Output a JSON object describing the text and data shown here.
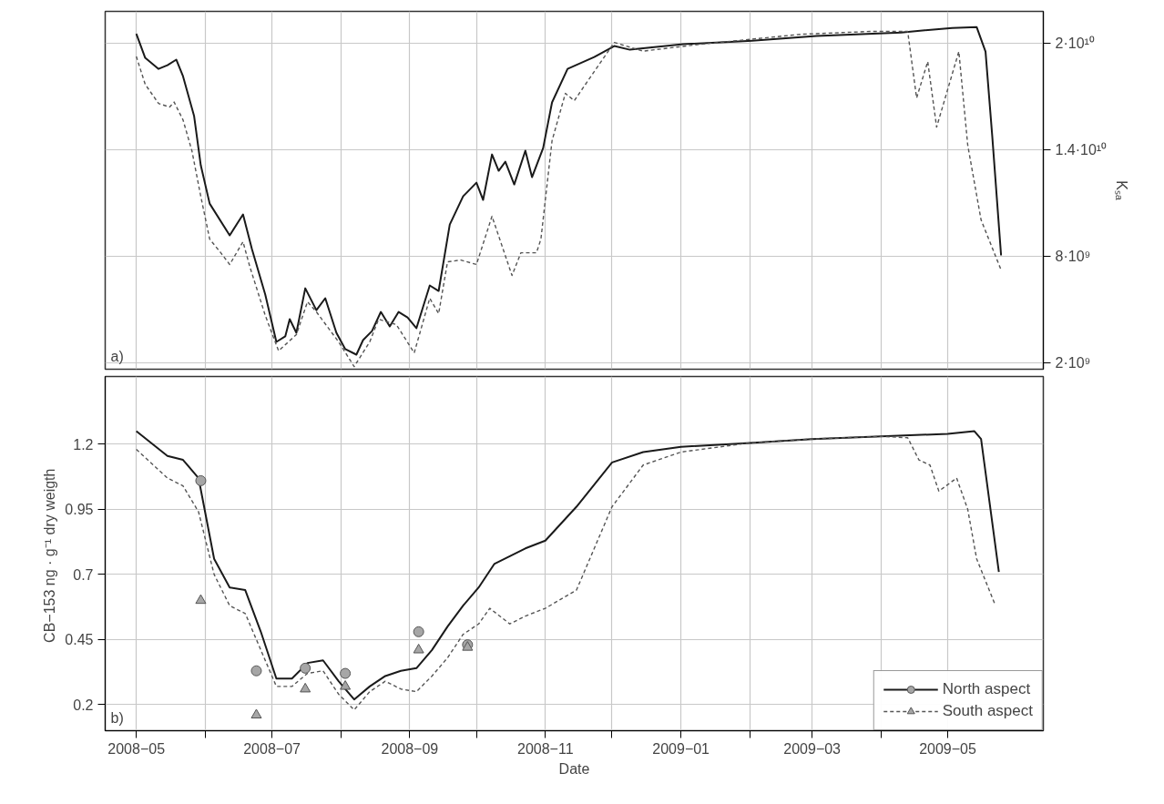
{
  "chart_data": [
    {
      "type": "line",
      "annotations": [
        "a)"
      ],
      "grid": true,
      "tick_labels": "y",
      "y2label": "Kₛₐ",
      "xlim": [
        "2008-04-17",
        "2009-06-13"
      ],
      "xticks": [
        {
          "value": "2008-05",
          "label": null
        },
        {
          "value": "2008-06",
          "label": null
        },
        {
          "value": "2008-07",
          "label": null
        },
        {
          "value": "2008-08",
          "label": null
        },
        {
          "value": "2008-09",
          "label": null
        },
        {
          "value": "2008-10",
          "label": null
        },
        {
          "value": "2008-11",
          "label": null
        },
        {
          "value": "2008-12",
          "label": null
        },
        {
          "value": "2009-01",
          "label": null
        },
        {
          "value": "2009-02",
          "label": null
        },
        {
          "value": "2009-03",
          "label": null
        },
        {
          "value": "2009-04",
          "label": null
        },
        {
          "value": "2009-05",
          "label": null
        }
      ],
      "y2lim": [
        1640000000,
        21800000000
      ],
      "y2ticks": [
        {
          "value": 2000000000,
          "label": "2·10⁹"
        },
        {
          "value": 8000000000,
          "label": "8·10⁹"
        },
        {
          "value": 14000000000,
          "label": "1.4·10¹⁰"
        },
        {
          "value": 20000000000,
          "label": "2·10¹⁰"
        }
      ],
      "series": [
        {
          "axis": "y2",
          "color": "#1a1a1a",
          "line_style": "solid",
          "x": [
            "2008-05-01",
            "2008-05-05",
            "2008-05-11",
            "2008-05-15",
            "2008-05-19",
            "2008-05-22",
            "2008-05-27",
            "2008-05-30",
            "2008-06-03",
            "2008-06-12",
            "2008-06-18",
            "2008-06-22",
            "2008-06-28",
            "2008-07-03",
            "2008-07-07",
            "2008-07-09",
            "2008-07-12",
            "2008-07-16",
            "2008-07-21",
            "2008-07-25",
            "2008-07-30",
            "2008-08-03",
            "2008-08-08",
            "2008-08-11",
            "2008-08-15",
            "2008-08-19",
            "2008-08-23",
            "2008-08-27",
            "2008-08-31",
            "2008-09-04",
            "2008-09-10",
            "2008-09-14",
            "2008-09-19",
            "2008-09-25",
            "2008-10-01",
            "2008-10-04",
            "2008-10-08",
            "2008-10-11",
            "2008-10-14",
            "2008-10-18",
            "2008-10-23",
            "2008-10-26",
            "2008-10-31",
            "2008-11-04",
            "2008-11-11",
            "2008-11-23",
            "2008-12-02",
            "2008-12-09",
            "2009-01-02",
            "2009-02-02",
            "2009-03-03",
            "2009-04-10",
            "2009-05-03",
            "2009-05-14",
            "2009-05-18",
            "2009-05-21",
            "2009-05-25"
          ],
          "values": [
            20540000000,
            19180000000,
            18560000000,
            18770000000,
            19080000000,
            18150000000,
            15900000000,
            13130000000,
            10970000000,
            9180000000,
            10360000000,
            8410000000,
            5850000000,
            3180000000,
            3490000000,
            4460000000,
            3690000000,
            6200000000,
            4970000000,
            5640000000,
            3690000000,
            2770000000,
            2460000000,
            3280000000,
            3790000000,
            4870000000,
            4050000000,
            4870000000,
            4560000000,
            3950000000,
            6360000000,
            6050000000,
            9790000000,
            11380000000,
            12150000000,
            11180000000,
            13740000000,
            12820000000,
            13330000000,
            12050000000,
            13950000000,
            12460000000,
            14100000000,
            16670000000,
            18560000000,
            19230000000,
            19850000000,
            19640000000,
            19950000000,
            20150000000,
            20410000000,
            20610000000,
            20870000000,
            20920000000,
            19540000000,
            14820000000,
            8050000000
          ]
        },
        {
          "axis": "y2",
          "color": "#555555",
          "line_style": "dashed",
          "x": [
            "2008-05-01",
            "2008-05-05",
            "2008-05-11",
            "2008-05-16",
            "2008-05-18",
            "2008-05-22",
            "2008-05-26",
            "2008-05-30",
            "2008-06-03",
            "2008-06-08",
            "2008-06-12",
            "2008-06-18",
            "2008-06-21",
            "2008-06-28",
            "2008-07-04",
            "2008-07-12",
            "2008-07-17",
            "2008-07-21",
            "2008-07-31",
            "2008-08-07",
            "2008-08-14",
            "2008-08-18",
            "2008-08-26",
            "2008-09-03",
            "2008-09-10",
            "2008-09-14",
            "2008-09-18",
            "2008-09-24",
            "2008-10-01",
            "2008-10-08",
            "2008-10-17",
            "2008-10-21",
            "2008-10-28",
            "2008-10-30",
            "2008-11-04",
            "2008-11-10",
            "2008-11-14",
            "2008-12-02",
            "2008-12-15",
            "2009-01-10",
            "2009-02-24",
            "2009-03-27",
            "2009-04-13",
            "2009-04-17",
            "2009-04-22",
            "2009-04-26",
            "2009-05-06",
            "2009-05-10",
            "2009-05-16",
            "2009-05-25"
          ],
          "values": [
            19260000000,
            17690000000,
            16610000000,
            16410000000,
            16690000000,
            15690000000,
            13950000000,
            11380000000,
            8970000000,
            8200000000,
            7540000000,
            8820000000,
            7440000000,
            4670000000,
            2670000000,
            3590000000,
            5440000000,
            4870000000,
            3180000000,
            1790000000,
            3180000000,
            4460000000,
            4150000000,
            2560000000,
            5640000000,
            4770000000,
            7690000000,
            7790000000,
            7540000000,
            10260000000,
            6920000000,
            8200000000,
            8200000000,
            8970000000,
            14510000000,
            17180000000,
            16770000000,
            20050000000,
            19560000000,
            19950000000,
            20510000000,
            20670000000,
            20670000000,
            16920000000,
            18970000000,
            15280000000,
            19540000000,
            14260000000,
            10050000000,
            7230000000
          ]
        }
      ]
    },
    {
      "type": "line",
      "annotations": [
        "b)"
      ],
      "grid": true,
      "legend": "bottom right",
      "xlabel": "Date",
      "ylabel": "CB−153 ng · g⁻¹  dry weigth",
      "xlim": [
        "2008-04-17",
        "2009-06-13"
      ],
      "xticks": [
        {
          "value": "2008-05",
          "label": "2008−05"
        },
        {
          "value": "2008-06",
          "label": null
        },
        {
          "value": "2008-07",
          "label": "2008−07"
        },
        {
          "value": "2008-08",
          "label": null
        },
        {
          "value": "2008-09",
          "label": "2008−09"
        },
        {
          "value": "2008-10",
          "label": null
        },
        {
          "value": "2008-11",
          "label": "2008−11"
        },
        {
          "value": "2008-12",
          "label": null
        },
        {
          "value": "2009-01",
          "label": "2009−01"
        },
        {
          "value": "2009-02",
          "label": null
        },
        {
          "value": "2009-03",
          "label": "2009−03"
        },
        {
          "value": "2009-04",
          "label": null
        },
        {
          "value": "2009-05",
          "label": "2009−05"
        }
      ],
      "ylim": [
        0.1,
        1.46
      ],
      "yticks": [
        0.2,
        0.45,
        0.7,
        0.95,
        1.2
      ],
      "series": [
        {
          "name": "North aspect",
          "color": "#1a1a1a",
          "line_style": "solid",
          "x": [
            "2008-05-01",
            "2008-05-15",
            "2008-05-22",
            "2008-05-29",
            "2008-06-05",
            "2008-06-12",
            "2008-06-19",
            "2008-06-26",
            "2008-07-03",
            "2008-07-10",
            "2008-07-17",
            "2008-07-24",
            "2008-07-31",
            "2008-08-07",
            "2008-08-14",
            "2008-08-21",
            "2008-08-28",
            "2008-09-04",
            "2008-09-11",
            "2008-09-18",
            "2008-09-25",
            "2008-10-02",
            "2008-10-09",
            "2008-10-16",
            "2008-10-23",
            "2008-11-01",
            "2008-11-15",
            "2008-12-01",
            "2008-12-15",
            "2009-01-01",
            "2009-02-01",
            "2009-03-01",
            "2009-04-01",
            "2009-05-01",
            "2009-05-13",
            "2009-05-16",
            "2009-05-24"
          ],
          "values": [
            1.25,
            1.155,
            1.14,
            1.07,
            0.76,
            0.65,
            0.64,
            0.48,
            0.3,
            0.3,
            0.36,
            0.37,
            0.29,
            0.22,
            0.27,
            0.31,
            0.33,
            0.34,
            0.41,
            0.5,
            0.58,
            0.65,
            0.74,
            0.77,
            0.8,
            0.83,
            0.96,
            1.13,
            1.17,
            1.19,
            1.205,
            1.22,
            1.23,
            1.24,
            1.25,
            1.22,
            0.71
          ]
        },
        {
          "name": "South aspect",
          "color": "#555555",
          "line_style": "dashed",
          "x": [
            "2008-05-01",
            "2008-05-15",
            "2008-05-22",
            "2008-05-29",
            "2008-06-05",
            "2008-06-12",
            "2008-06-19",
            "2008-06-26",
            "2008-07-03",
            "2008-07-10",
            "2008-07-17",
            "2008-07-24",
            "2008-07-31",
            "2008-08-07",
            "2008-08-14",
            "2008-08-21",
            "2008-08-28",
            "2008-09-04",
            "2008-09-11",
            "2008-09-18",
            "2008-09-25",
            "2008-10-02",
            "2008-10-07",
            "2008-10-16",
            "2008-10-23",
            "2008-11-01",
            "2008-11-15",
            "2008-12-01",
            "2008-12-15",
            "2009-01-01",
            "2009-02-01",
            "2009-03-01",
            "2009-04-01",
            "2009-04-13",
            "2009-04-18",
            "2009-04-23",
            "2009-04-27",
            "2009-05-05",
            "2009-05-10",
            "2009-05-14",
            "2009-05-22"
          ],
          "values": [
            1.18,
            1.07,
            1.04,
            0.94,
            0.7,
            0.58,
            0.55,
            0.41,
            0.27,
            0.27,
            0.32,
            0.33,
            0.24,
            0.18,
            0.25,
            0.29,
            0.26,
            0.25,
            0.31,
            0.38,
            0.47,
            0.51,
            0.57,
            0.51,
            0.54,
            0.57,
            0.64,
            0.96,
            1.12,
            1.17,
            1.205,
            1.22,
            1.23,
            1.225,
            1.14,
            1.12,
            1.02,
            1.07,
            0.95,
            0.76,
            0.59
          ]
        },
        {
          "type": "scatter",
          "marker": "circle",
          "color": "#a6a6a6",
          "x": [
            "2008-05-30",
            "2008-06-24",
            "2008-07-16",
            "2008-08-03",
            "2008-09-05",
            "2008-09-27"
          ],
          "values": [
            1.06,
            0.33,
            0.34,
            0.32,
            0.48,
            0.43
          ]
        },
        {
          "type": "scatter",
          "marker": "triangle",
          "color": "#a6a6a6",
          "x": [
            "2008-05-30",
            "2008-06-24",
            "2008-07-16",
            "2008-08-03",
            "2008-09-05",
            "2008-09-27"
          ],
          "values": [
            0.6,
            0.16,
            0.26,
            0.27,
            0.41,
            0.42
          ]
        }
      ]
    }
  ]
}
